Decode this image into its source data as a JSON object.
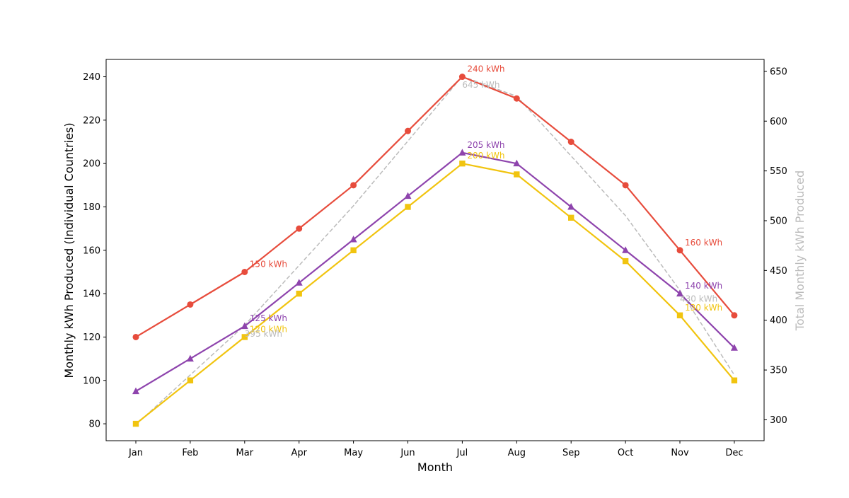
{
  "chart_data": {
    "type": "line",
    "categories": [
      "Jan",
      "Feb",
      "Mar",
      "Apr",
      "May",
      "Jun",
      "Jul",
      "Aug",
      "Sep",
      "Oct",
      "Nov",
      "Dec"
    ],
    "xlabel": "Month",
    "ylabel": "Monthly kWh Produced (Individual Countries)",
    "y2label": "Total Monthly kWh Produced",
    "ylim": [
      72.2,
      248
    ],
    "y2lim": [
      279,
      662
    ],
    "yticks": [
      "80",
      "100",
      "120",
      "140",
      "160",
      "180",
      "200",
      "220",
      "240"
    ],
    "y2ticks": [
      "300",
      "350",
      "400",
      "450",
      "500",
      "550",
      "600",
      "650"
    ],
    "grid": false,
    "series": [
      {
        "key": "s_red",
        "color": "#e74c3c",
        "marker": "circle",
        "axis": "left",
        "values": [
          120,
          135,
          150,
          170,
          190,
          215,
          240,
          230,
          210,
          190,
          160,
          130
        ]
      },
      {
        "key": "s_yellow",
        "color": "#f1c40f",
        "marker": "square",
        "axis": "left",
        "values": [
          80,
          100,
          120,
          140,
          160,
          180,
          200,
          195,
          175,
          155,
          130,
          100
        ]
      },
      {
        "key": "s_purple",
        "color": "#8e44ad",
        "marker": "triangle",
        "axis": "left",
        "values": [
          95,
          110,
          125,
          145,
          165,
          185,
          205,
          200,
          180,
          160,
          140,
          115
        ]
      },
      {
        "key": "s_total",
        "color": "#bbbbbb",
        "marker": "none",
        "axis": "right",
        "dashed": true,
        "values": [
          295,
          345,
          395,
          455,
          515,
          580,
          645,
          625,
          565,
          505,
          430,
          345
        ]
      }
    ],
    "annotations": [
      {
        "series": 0,
        "index": 2,
        "text": "150 kWh",
        "color": "#e74c3c"
      },
      {
        "series": 0,
        "index": 6,
        "text": "240 kWh",
        "color": "#e74c3c"
      },
      {
        "series": 0,
        "index": 10,
        "text": "160 kWh",
        "color": "#e74c3c"
      },
      {
        "series": 1,
        "index": 2,
        "text": "120 kWh",
        "color": "#f1c40f"
      },
      {
        "series": 1,
        "index": 6,
        "text": "200 kWh",
        "color": "#f1c40f"
      },
      {
        "series": 1,
        "index": 10,
        "text": "130 kWh",
        "color": "#f1c40f"
      },
      {
        "series": 2,
        "index": 2,
        "text": "125 kWh",
        "color": "#8e44ad"
      },
      {
        "series": 2,
        "index": 6,
        "text": "205 kWh",
        "color": "#8e44ad"
      },
      {
        "series": 2,
        "index": 10,
        "text": "140 kWh",
        "color": "#8e44ad"
      },
      {
        "series": 3,
        "index": 2,
        "text": "395 kWh",
        "color": "#bbbbbb"
      },
      {
        "series": 3,
        "index": 6,
        "text": "645 kWh",
        "color": "#bbbbbb"
      },
      {
        "series": 3,
        "index": 10,
        "text": "430 kWh",
        "color": "#bbbbbb"
      }
    ]
  }
}
